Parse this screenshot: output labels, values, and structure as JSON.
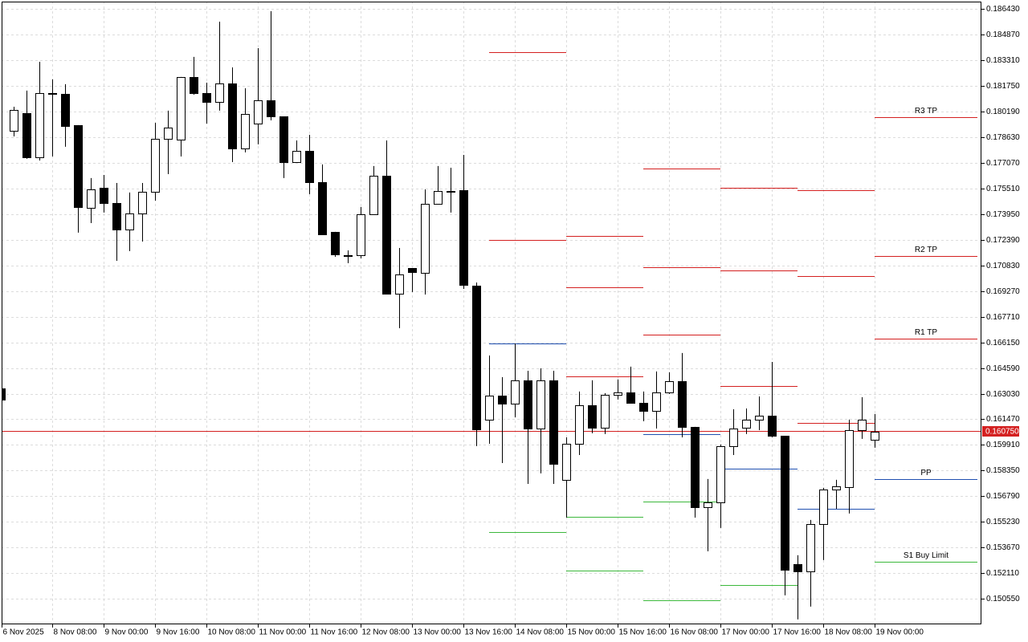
{
  "chart_data": {
    "type": "candlestick",
    "categories": [
      "6 Nov 2025",
      null,
      null,
      null,
      "8 Nov 08:00",
      null,
      null,
      null,
      "9 Nov 00:00",
      null,
      null,
      null,
      "9 Nov 16:00",
      null,
      null,
      null,
      "10 Nov 08:00",
      null,
      null,
      null,
      "11 Nov 00:00",
      null,
      null,
      null,
      "11 Nov 16:00",
      null,
      null,
      null,
      "12 Nov 08:00",
      null,
      null,
      null,
      "13 Nov 00:00",
      null,
      null,
      null,
      "13 Nov 16:00",
      null,
      null,
      null,
      "14 Nov 08:00",
      null,
      null,
      null,
      "15 Nov 00:00",
      null,
      null,
      null,
      "15 Nov 16:00",
      null,
      null,
      null,
      "16 Nov 08:00",
      null,
      null,
      null,
      "17 Nov 00:00",
      null,
      null,
      null,
      "17 Nov 16:00",
      null,
      null,
      null,
      "18 Nov 08:00",
      null,
      null,
      null,
      "19 Nov 00:00"
    ],
    "open": [
      0.16335,
      0.17902,
      0.18009,
      0.17741,
      0.18131,
      0.18126,
      0.17936,
      0.17433,
      0.17555,
      0.17462,
      0.17301,
      0.17399,
      0.17531,
      0.17853,
      0.17848,
      0.18229,
      0.18131,
      0.18077,
      0.1819,
      0.17794,
      0.17945,
      0.18087,
      0.17989,
      0.17711,
      0.17779,
      0.17589,
      0.17287,
      0.17145,
      0.17145,
      0.17394,
      0.17628,
      0.16911,
      0.17067,
      0.17038,
      0.17457,
      0.17535,
      0.1754,
      0.1696,
      0.16145,
      0.16291,
      0.16242,
      0.16384,
      0.16091,
      0.16384,
      0.15779,
      0.15998,
      0.16233,
      0.16096,
      0.16296,
      0.16311,
      0.16247,
      0.16198,
      0.16311,
      0.16379,
      0.16101,
      0.15613,
      0.15642,
      0.15984,
      0.16096,
      0.16145,
      0.16169,
      0.16047,
      0.15266,
      0.15222,
      0.1551,
      0.1572,
      0.15735,
      0.16081,
      0.16023
    ],
    "high": [
      0.16335,
      0.18048,
      0.18146,
      0.18321,
      0.18214,
      0.18185,
      0.17936,
      0.17614,
      0.17633,
      0.17584,
      0.17526,
      0.17584,
      0.1795,
      0.18024,
      0.18229,
      0.18351,
      0.18194,
      0.18565,
      0.18287,
      0.1816,
      0.18404,
      0.18629,
      0.17989,
      0.17843,
      0.17877,
      0.17697,
      0.17287,
      0.17174,
      0.17438,
      0.17687,
      0.17843,
      0.17189,
      0.17067,
      0.17545,
      0.17687,
      0.17677,
      0.17755,
      0.16979,
      0.16535,
      0.16403,
      0.16608,
      0.16442,
      0.16457,
      0.16442,
      0.16037,
      0.16316,
      0.16384,
      0.16306,
      0.16389,
      0.16467,
      0.16316,
      0.16438,
      0.16433,
      0.1655,
      0.16101,
      0.15784,
      0.15994,
      0.16208,
      0.16213,
      0.16286,
      0.16496,
      0.16047,
      0.1532,
      0.15535,
      0.1573,
      0.15779,
      0.16145,
      0.16281,
      0.16179
    ],
    "low": [
      0.16267,
      0.17867,
      0.17731,
      0.17721,
      0.17745,
      0.17804,
      0.17282,
      0.1734,
      0.17404,
      0.17111,
      0.1717,
      0.17228,
      0.17477,
      0.17638,
      0.17745,
      0.18121,
      0.17945,
      0.18024,
      0.17711,
      0.1777,
      0.17819,
      0.17965,
      0.17614,
      0.17711,
      0.17516,
      0.17272,
      0.17135,
      0.17096,
      0.17126,
      0.17389,
      0.16906,
      0.16701,
      0.16921,
      0.16906,
      0.17457,
      0.17404,
      0.1694,
      0.15984,
      0.15998,
      0.15881,
      0.16159,
      0.15754,
      0.15818,
      0.15754,
      0.15549,
      0.1593,
      0.16062,
      0.16057,
      0.16267,
      0.16247,
      0.16135,
      0.16091,
      0.16301,
      0.16037,
      0.15549,
      0.15344,
      0.15486,
      0.1593,
      0.16057,
      0.16081,
      0.16037,
      0.15076,
      0.1493,
      0.15008,
      0.15291,
      0.15603,
      0.15574,
      0.16028,
      0.15974
    ],
    "close": [
      0.16267,
      0.18028,
      0.17741,
      0.18131,
      0.18126,
      0.17931,
      0.17438,
      0.17545,
      0.17462,
      0.17301,
      0.17399,
      0.17531,
      0.17853,
      0.17921,
      0.18229,
      0.18131,
      0.18077,
      0.1819,
      0.17794,
      0.18004,
      0.18087,
      0.17989,
      0.17711,
      0.17779,
      0.17589,
      0.17272,
      0.1715,
      0.17145,
      0.17394,
      0.17628,
      0.16911,
      0.17028,
      0.17043,
      0.17457,
      0.17535,
      0.17535,
      0.16965,
      0.16086,
      0.16291,
      0.16242,
      0.16384,
      0.16091,
      0.16384,
      0.15876,
      0.15998,
      0.16233,
      0.16096,
      0.16296,
      0.16311,
      0.16247,
      0.16198,
      0.16311,
      0.16379,
      0.16101,
      0.15613,
      0.15642,
      0.15984,
      0.16091,
      0.16145,
      0.16169,
      0.16047,
      0.15232,
      0.15222,
      0.1551,
      0.1572,
      0.1574,
      0.16081,
      0.16145,
      0.16072
    ],
    "up_color": "#ffffff",
    "down_color": "#000000",
    "ylim": [
      0.149,
      0.18687
    ],
    "yticks": [
      {
        "value": 0.18643,
        "label": "0.186430"
      },
      {
        "value": 0.18487,
        "label": "0.184870"
      },
      {
        "value": 0.18331,
        "label": "0.183310"
      },
      {
        "value": 0.18175,
        "label": "0.181750"
      },
      {
        "value": 0.18019,
        "label": "0.180190"
      },
      {
        "value": 0.17863,
        "label": "0.178630"
      },
      {
        "value": 0.17707,
        "label": "0.177070"
      },
      {
        "value": 0.17551,
        "label": "0.175510"
      },
      {
        "value": 0.17395,
        "label": "0.173950"
      },
      {
        "value": 0.17239,
        "label": "0.172390"
      },
      {
        "value": 0.17083,
        "label": "0.170830"
      },
      {
        "value": 0.16927,
        "label": "0.169270"
      },
      {
        "value": 0.16771,
        "label": "0.167710"
      },
      {
        "value": 0.16615,
        "label": "0.166150"
      },
      {
        "value": 0.16459,
        "label": "0.164590"
      },
      {
        "value": 0.16303,
        "label": "0.163030"
      },
      {
        "value": 0.16147,
        "label": "0.161470"
      },
      {
        "value": 0.15991,
        "label": "0.159910"
      },
      {
        "value": 0.15835,
        "label": "0.158350"
      },
      {
        "value": 0.15679,
        "label": "0.156790"
      },
      {
        "value": 0.15523,
        "label": "0.155230"
      },
      {
        "value": 0.15367,
        "label": "0.153670"
      },
      {
        "value": 0.15211,
        "label": "0.152110"
      },
      {
        "value": 0.15055,
        "label": "0.150550"
      }
    ],
    "grid": true,
    "current_price": {
      "value": 0.16075,
      "label": "0.160750",
      "color": "#d42020"
    },
    "levels": [
      {
        "x": [
          38,
          44
        ],
        "lines": [
          {
            "value": 0.1838,
            "color": "#d42020"
          },
          {
            "value": 0.17238,
            "color": "#d42020"
          },
          {
            "value": 0.16608,
            "color": "#2050b0"
          },
          {
            "value": 0.15462,
            "color": "#3cb83c"
          }
        ]
      },
      {
        "x": [
          44,
          50
        ],
        "lines": [
          {
            "value": 0.17262,
            "color": "#d42020"
          },
          {
            "value": 0.1695,
            "color": "#d42020"
          },
          {
            "value": 0.16408,
            "color": "#d42020"
          },
          {
            "value": 0.16077,
            "color": "#2050b0"
          },
          {
            "value": 0.15554,
            "color": "#3cb83c"
          },
          {
            "value": 0.15227,
            "color": "#3cb83c"
          }
        ]
      },
      {
        "x": [
          50,
          56
        ],
        "lines": [
          {
            "value": 0.17672,
            "color": "#d42020"
          },
          {
            "value": 0.17072,
            "color": "#d42020"
          },
          {
            "value": 0.16662,
            "color": "#d42020"
          },
          {
            "value": 0.16057,
            "color": "#2050b0"
          },
          {
            "value": 0.15647,
            "color": "#3cb83c"
          },
          {
            "value": 0.15047,
            "color": "#3cb83c"
          }
        ]
      },
      {
        "x": [
          56,
          62
        ],
        "lines": [
          {
            "value": 0.17555,
            "color": "#d42020"
          },
          {
            "value": 0.17053,
            "color": "#d42020"
          },
          {
            "value": 0.1635,
            "color": "#d42020"
          },
          {
            "value": 0.15847,
            "color": "#2050b0"
          },
          {
            "value": 0.15139,
            "color": "#3cb83c"
          }
        ]
      },
      {
        "x": [
          62,
          68
        ],
        "lines": [
          {
            "value": 0.1754,
            "color": "#d42020"
          },
          {
            "value": 0.17018,
            "color": "#d42020"
          },
          {
            "value": 0.16125,
            "color": "#d42020"
          },
          {
            "value": 0.15603,
            "color": "#2050b0"
          }
        ]
      },
      {
        "x": [
          68,
          76
        ],
        "lines": [
          {
            "value": 0.17984,
            "color": "#d42020",
            "name": "R3 TP"
          },
          {
            "value": 0.1714,
            "color": "#d42020",
            "name": "R2 TP"
          },
          {
            "value": 0.16638,
            "color": "#d42020",
            "name": "R1 TP"
          },
          {
            "value": 0.15784,
            "color": "#2050b0",
            "name": "PP"
          },
          {
            "value": 0.15281,
            "color": "#3cb83c",
            "name": "S1 Buy Limit"
          }
        ]
      }
    ]
  }
}
